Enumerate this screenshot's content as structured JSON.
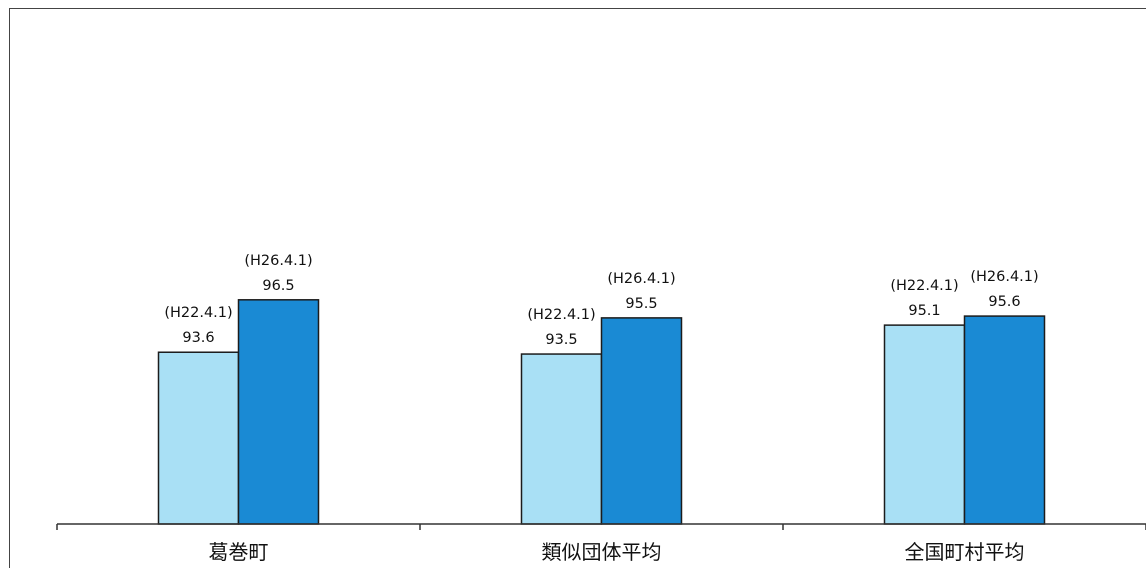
{
  "chart_data": {
    "type": "bar",
    "title": "",
    "xlabel": "",
    "ylabel": "",
    "categories": [
      "葛巻町",
      "類似団体平均",
      "全国町村平均"
    ],
    "series": [
      {
        "values": [
          93.6,
          93.5,
          95.1
        ],
        "labels": [
          "(H22.4.1)",
          "(H22.4.1)",
          "(H22.4.1)"
        ],
        "value_labels": [
          "93.6",
          "93.5",
          "95.1"
        ],
        "color": "#a9e0f5"
      },
      {
        "values": [
          96.5,
          95.5,
          95.6
        ],
        "labels": [
          "(H26.4.1)",
          "(H26.4.1)",
          "(H26.4.1)"
        ],
        "value_labels": [
          "96.5",
          "95.5",
          "95.6"
        ],
        "color": "#1a8ad4"
      }
    ],
    "ylim": [
      84.1,
      100
    ],
    "grid": false,
    "legend": "none"
  }
}
